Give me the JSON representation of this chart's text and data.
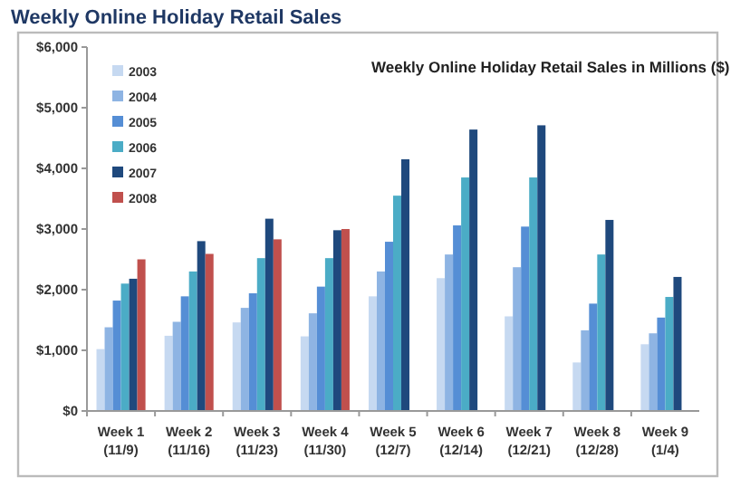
{
  "chart_data": {
    "type": "bar",
    "title": "Weekly Online Holiday Retail Sales",
    "subtitle": "Weekly Online Holiday Retail Sales in Millions ($)",
    "categories": [
      "Week 1\n(11/9)",
      "Week 2\n(11/16)",
      "Week 3\n(11/23)",
      "Week 4\n(11/30)",
      "Week 5\n(12/7)",
      "Week 6\n(12/14)",
      "Week 7\n(12/21)",
      "Week 8\n(12/28)",
      "Week 9\n(1/4)"
    ],
    "series": [
      {
        "name": "2003",
        "color": "#c6d9f1",
        "values": [
          1020,
          1240,
          1460,
          1230,
          1890,
          2190,
          1560,
          800,
          1100
        ]
      },
      {
        "name": "2004",
        "color": "#8eb4e3",
        "values": [
          1380,
          1470,
          1700,
          1610,
          2300,
          2580,
          2370,
          1330,
          1280
        ]
      },
      {
        "name": "2005",
        "color": "#558ed5",
        "values": [
          1820,
          1890,
          1940,
          2050,
          2790,
          3060,
          3040,
          1770,
          1540
        ]
      },
      {
        "name": "2006",
        "color": "#4bacc6",
        "values": [
          2100,
          2300,
          2520,
          2520,
          3550,
          3850,
          3850,
          2580,
          1880
        ]
      },
      {
        "name": "2007",
        "color": "#1f497d",
        "values": [
          2180,
          2800,
          3170,
          2980,
          4150,
          4640,
          4710,
          3150,
          2210
        ]
      },
      {
        "name": "2008",
        "color": "#c0504d",
        "values": [
          2500,
          2590,
          2830,
          3000,
          null,
          null,
          null,
          null,
          null
        ]
      }
    ],
    "ylim": [
      0,
      6000
    ],
    "yticks": [
      {
        "value": 0,
        "label": "$0"
      },
      {
        "value": 1000,
        "label": "$1,000"
      },
      {
        "value": 2000,
        "label": "$2,000"
      },
      {
        "value": 3000,
        "label": "$3,000"
      },
      {
        "value": 4000,
        "label": "$4,000"
      },
      {
        "value": 5000,
        "label": "$5,000"
      },
      {
        "value": 6000,
        "label": "$6,000"
      }
    ],
    "grid": false,
    "legend": "top left"
  }
}
